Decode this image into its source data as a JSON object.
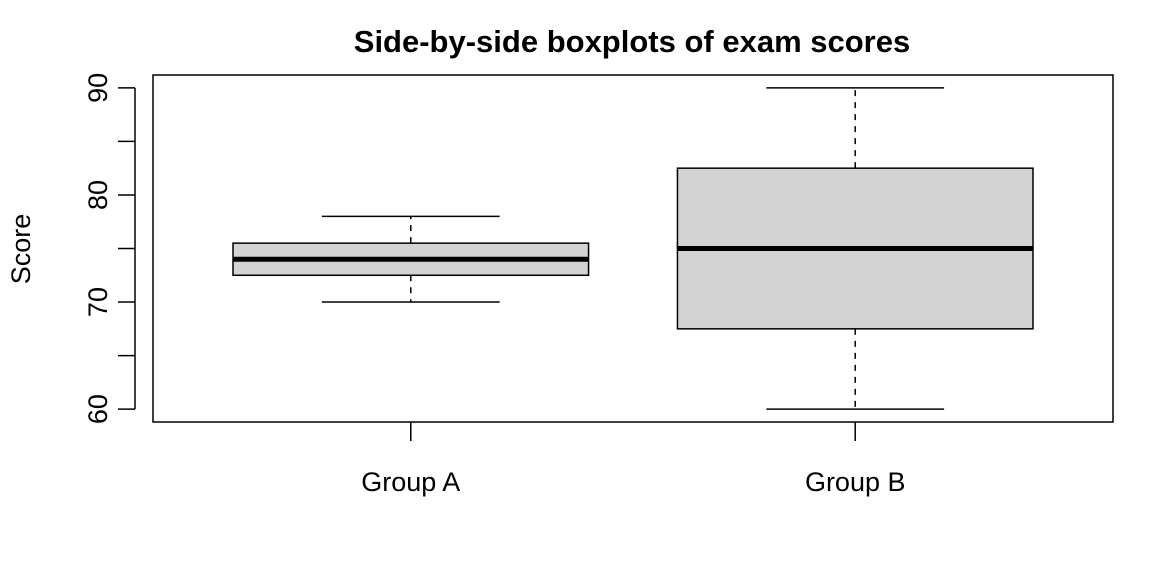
{
  "chart_data": {
    "type": "boxplot",
    "title": "Side-by-side boxplots of exam scores",
    "xlabel": "",
    "ylabel": "Score",
    "categories": [
      "Group A",
      "Group B"
    ],
    "boxes": [
      {
        "label": "Group A",
        "whisker_low": 70,
        "q1": 72.5,
        "median": 74,
        "q3": 75.5,
        "whisker_high": 78
      },
      {
        "label": "Group B",
        "whisker_low": 60,
        "q1": 67.5,
        "median": 75,
        "q3": 82.5,
        "whisker_high": 90
      }
    ],
    "y_ticks": [
      60,
      70,
      80,
      90
    ],
    "ylim": [
      58.8,
      91.2
    ],
    "grid": false,
    "box_fill": "#d3d3d3",
    "line_color": "#000000"
  }
}
